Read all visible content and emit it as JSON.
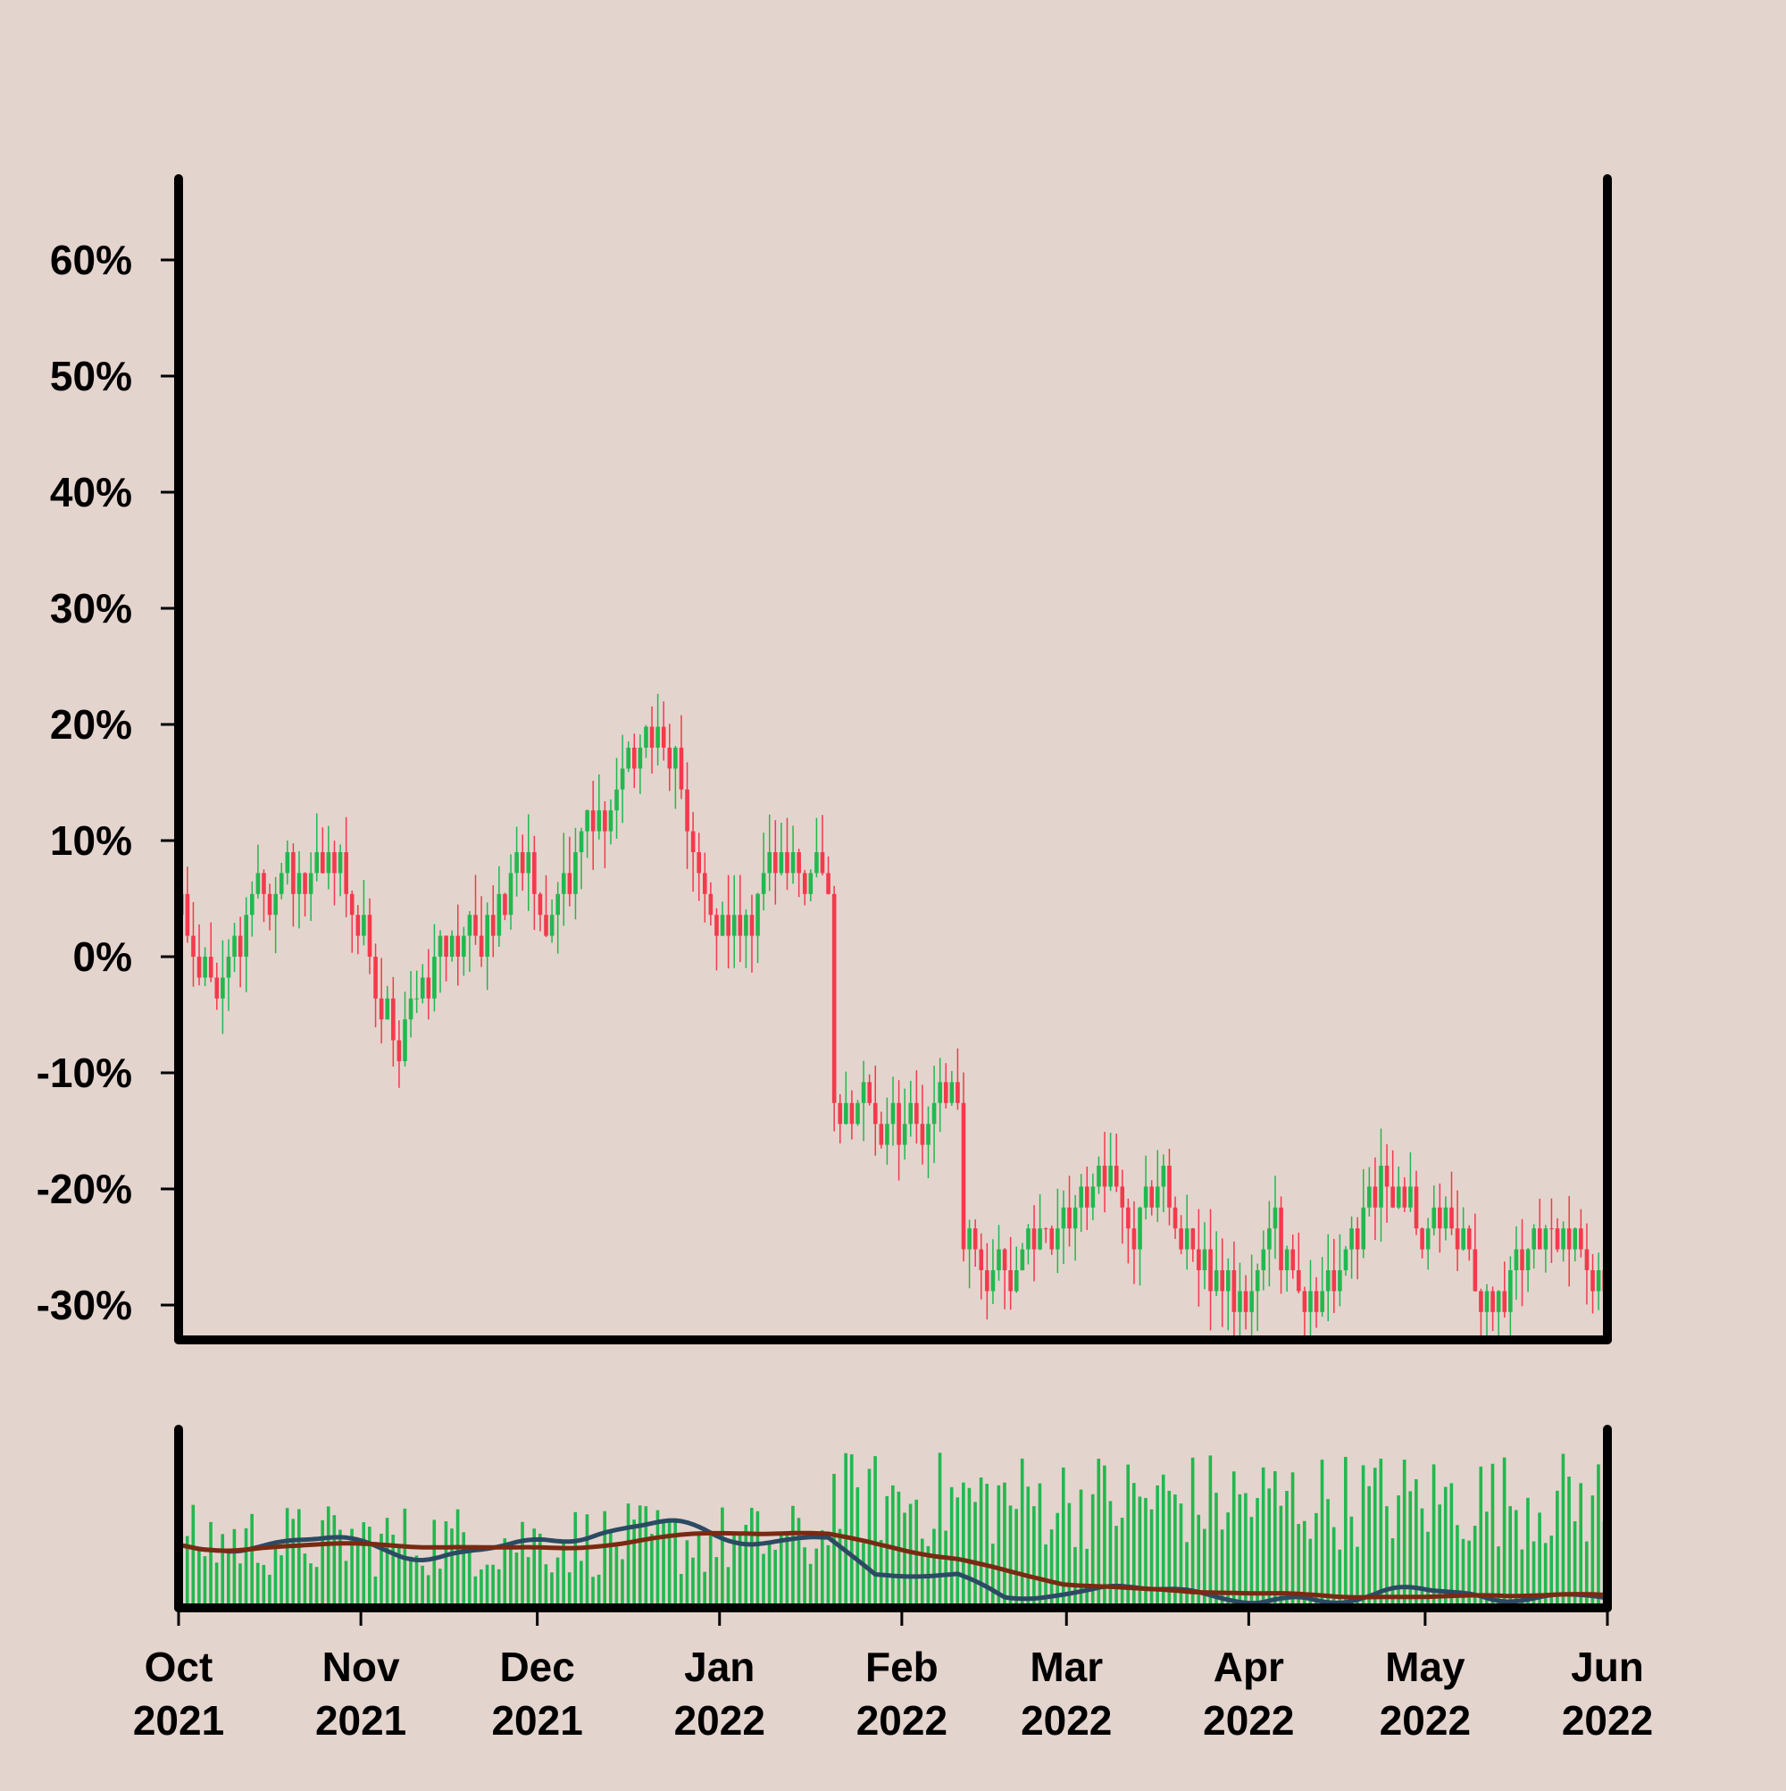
{
  "colors": {
    "background": "#e4d4ce",
    "up": "#22b84f",
    "down": "#f33a4c",
    "volume": "#22b84f",
    "ma_short": "#2c4a63",
    "ma_long": "#7a2a12",
    "axis": "#000000"
  },
  "chart_data": {
    "type": "candlestick",
    "price_panel": {
      "yscale": "percent",
      "ylim": [
        -33,
        67
      ],
      "yticks": [
        60,
        50,
        40,
        30,
        20,
        10,
        0,
        -10,
        -20,
        -30
      ],
      "ytick_labels": [
        "60%",
        "50%",
        "40%",
        "30%",
        "20%",
        "10%",
        "0%",
        "-10%",
        "-20%",
        "-30%"
      ],
      "step_percent": 1.8,
      "shape": "step-wise random walk; boxes of 1.8% (approximate readings)",
      "path_anchors": [
        [
          "2021-10-01",
          3
        ],
        [
          "2021-10-04",
          -1
        ],
        [
          "2021-10-08",
          -1
        ],
        [
          "2021-10-14",
          6
        ],
        [
          "2021-10-20",
          6
        ],
        [
          "2021-10-26",
          9
        ],
        [
          "2021-10-31",
          2
        ],
        [
          "2021-11-07",
          -8
        ],
        [
          "2021-11-13",
          0
        ],
        [
          "2021-11-18",
          0
        ],
        [
          "2021-11-27",
          8
        ],
        [
          "2021-12-03",
          3
        ],
        [
          "2021-12-10",
          13
        ],
        [
          "2021-12-13",
          12
        ],
        [
          "2021-12-19",
          18
        ],
        [
          "2021-12-23",
          17
        ],
        [
          "2021-12-30",
          3
        ],
        [
          "2022-01-06",
          4
        ],
        [
          "2022-01-10",
          8
        ],
        [
          "2022-01-19",
          7
        ],
        [
          "2022-01-19",
          -12
        ],
        [
          "2022-01-30",
          -15
        ],
        [
          "2022-02-10",
          -12
        ],
        [
          "2022-02-10",
          -23
        ],
        [
          "2022-02-17",
          -28
        ],
        [
          "2022-02-26",
          -24
        ],
        [
          "2022-03-06",
          -18
        ],
        [
          "2022-03-11",
          -23
        ],
        [
          "2022-03-16",
          -20
        ],
        [
          "2022-03-26",
          -29
        ],
        [
          "2022-03-31",
          -31
        ],
        [
          "2022-04-04",
          -23
        ],
        [
          "2022-04-10",
          -30
        ],
        [
          "2022-04-15",
          -29
        ],
        [
          "2022-04-23",
          -18
        ],
        [
          "2022-04-29",
          -24
        ],
        [
          "2022-05-03",
          -22
        ],
        [
          "2022-05-12",
          -31
        ],
        [
          "2022-05-16",
          -25
        ],
        [
          "2022-05-23",
          -24
        ],
        [
          "2022-05-31",
          -28
        ]
      ]
    },
    "volume_panel": {
      "series": [
        {
          "values_shape": "daily volume bars, higher after Jan 2022"
        },
        {
          "values_shape": "short moving average"
        },
        {
          "values_shape": "long moving average"
        }
      ]
    },
    "x_axis": {
      "type": "date",
      "range": [
        "2021-10-01",
        "2022-06-01"
      ],
      "ticks": [
        {
          "date": "2021-10-01",
          "month": "Oct",
          "year": "2021"
        },
        {
          "date": "2021-11-01",
          "month": "Nov",
          "year": "2021"
        },
        {
          "date": "2021-12-01",
          "month": "Dec",
          "year": "2021"
        },
        {
          "date": "2022-01-01",
          "month": "Jan",
          "year": "2022"
        },
        {
          "date": "2022-02-01",
          "month": "Feb",
          "year": "2022"
        },
        {
          "date": "2022-03-01",
          "month": "Mar",
          "year": "2022"
        },
        {
          "date": "2022-04-01",
          "month": "Apr",
          "year": "2022"
        },
        {
          "date": "2022-05-01",
          "month": "May",
          "year": "2022"
        },
        {
          "date": "2022-06-01",
          "month": "Jun",
          "year": "2022"
        }
      ]
    },
    "grid": false,
    "legend": "none"
  }
}
